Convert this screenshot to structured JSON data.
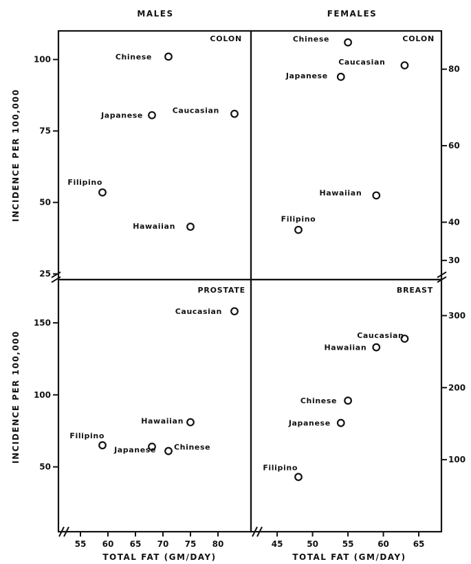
{
  "column_headers": [
    "MALES",
    "FEMALES"
  ],
  "y_axis_title": "INCIDENCE PER 100,000",
  "x_axis_title": "TOTAL FAT (GM/DAY)",
  "chart_data": [
    {
      "type": "scatter",
      "title": "COLON",
      "group": "MALES",
      "xlim": [
        51,
        86
      ],
      "ylim": [
        23,
        110
      ],
      "yticks": [
        25,
        50,
        75,
        100
      ],
      "points": [
        {
          "label": "Chinese",
          "x": 71,
          "y": 101
        },
        {
          "label": "Japanese",
          "x": 68,
          "y": 80.5
        },
        {
          "label": "Caucasian",
          "x": 83,
          "y": 81
        },
        {
          "label": "Filipino",
          "x": 59,
          "y": 53.5
        },
        {
          "label": "Hawaiian",
          "x": 75,
          "y": 41.5
        }
      ]
    },
    {
      "type": "scatter",
      "title": "COLON",
      "group": "FEMALES",
      "xlim": [
        41.3,
        68.2
      ],
      "ylim": [
        25,
        90
      ],
      "yticks": [
        30,
        40,
        60,
        80
      ],
      "yticklabels": [
        "30",
        "40",
        "60",
        "80"
      ],
      "points": [
        {
          "label": "Chinese",
          "x": 55,
          "y": 87
        },
        {
          "label": "Caucasian",
          "x": 63,
          "y": 81
        },
        {
          "label": "Japanese",
          "x": 54,
          "y": 78
        },
        {
          "label": "Hawaiian",
          "x": 59,
          "y": 47
        },
        {
          "label": "Filipino",
          "x": 48,
          "y": 38
        }
      ]
    },
    {
      "type": "scatter",
      "title": "PROSTATE",
      "group": "MALES",
      "xlim": [
        51,
        86
      ],
      "ylim": [
        5,
        180
      ],
      "yticks": [
        50,
        100,
        150
      ],
      "xticks": [
        55,
        60,
        65,
        70,
        75,
        80
      ],
      "points": [
        {
          "label": "Caucasian",
          "x": 83,
          "y": 158
        },
        {
          "label": "Hawaiian",
          "x": 75,
          "y": 81
        },
        {
          "label": "Filipino",
          "x": 59,
          "y": 65
        },
        {
          "label": "Japanese",
          "x": 68,
          "y": 64
        },
        {
          "label": "Chinese",
          "x": 71,
          "y": 61
        }
      ]
    },
    {
      "type": "scatter",
      "title": "BREAST",
      "group": "FEMALES",
      "xlim": [
        41.3,
        68.2
      ],
      "ylim": [
        0,
        350
      ],
      "yticks": [
        100,
        200,
        300
      ],
      "xticks": [
        45,
        50,
        55,
        60,
        65
      ],
      "points": [
        {
          "label": "Caucasian",
          "x": 63,
          "y": 268
        },
        {
          "label": "Hawaiian",
          "x": 59,
          "y": 256
        },
        {
          "label": "Chinese",
          "x": 55,
          "y": 182
        },
        {
          "label": "Japanese",
          "x": 54,
          "y": 151
        },
        {
          "label": "Filipino",
          "x": 48,
          "y": 76
        }
      ]
    }
  ]
}
